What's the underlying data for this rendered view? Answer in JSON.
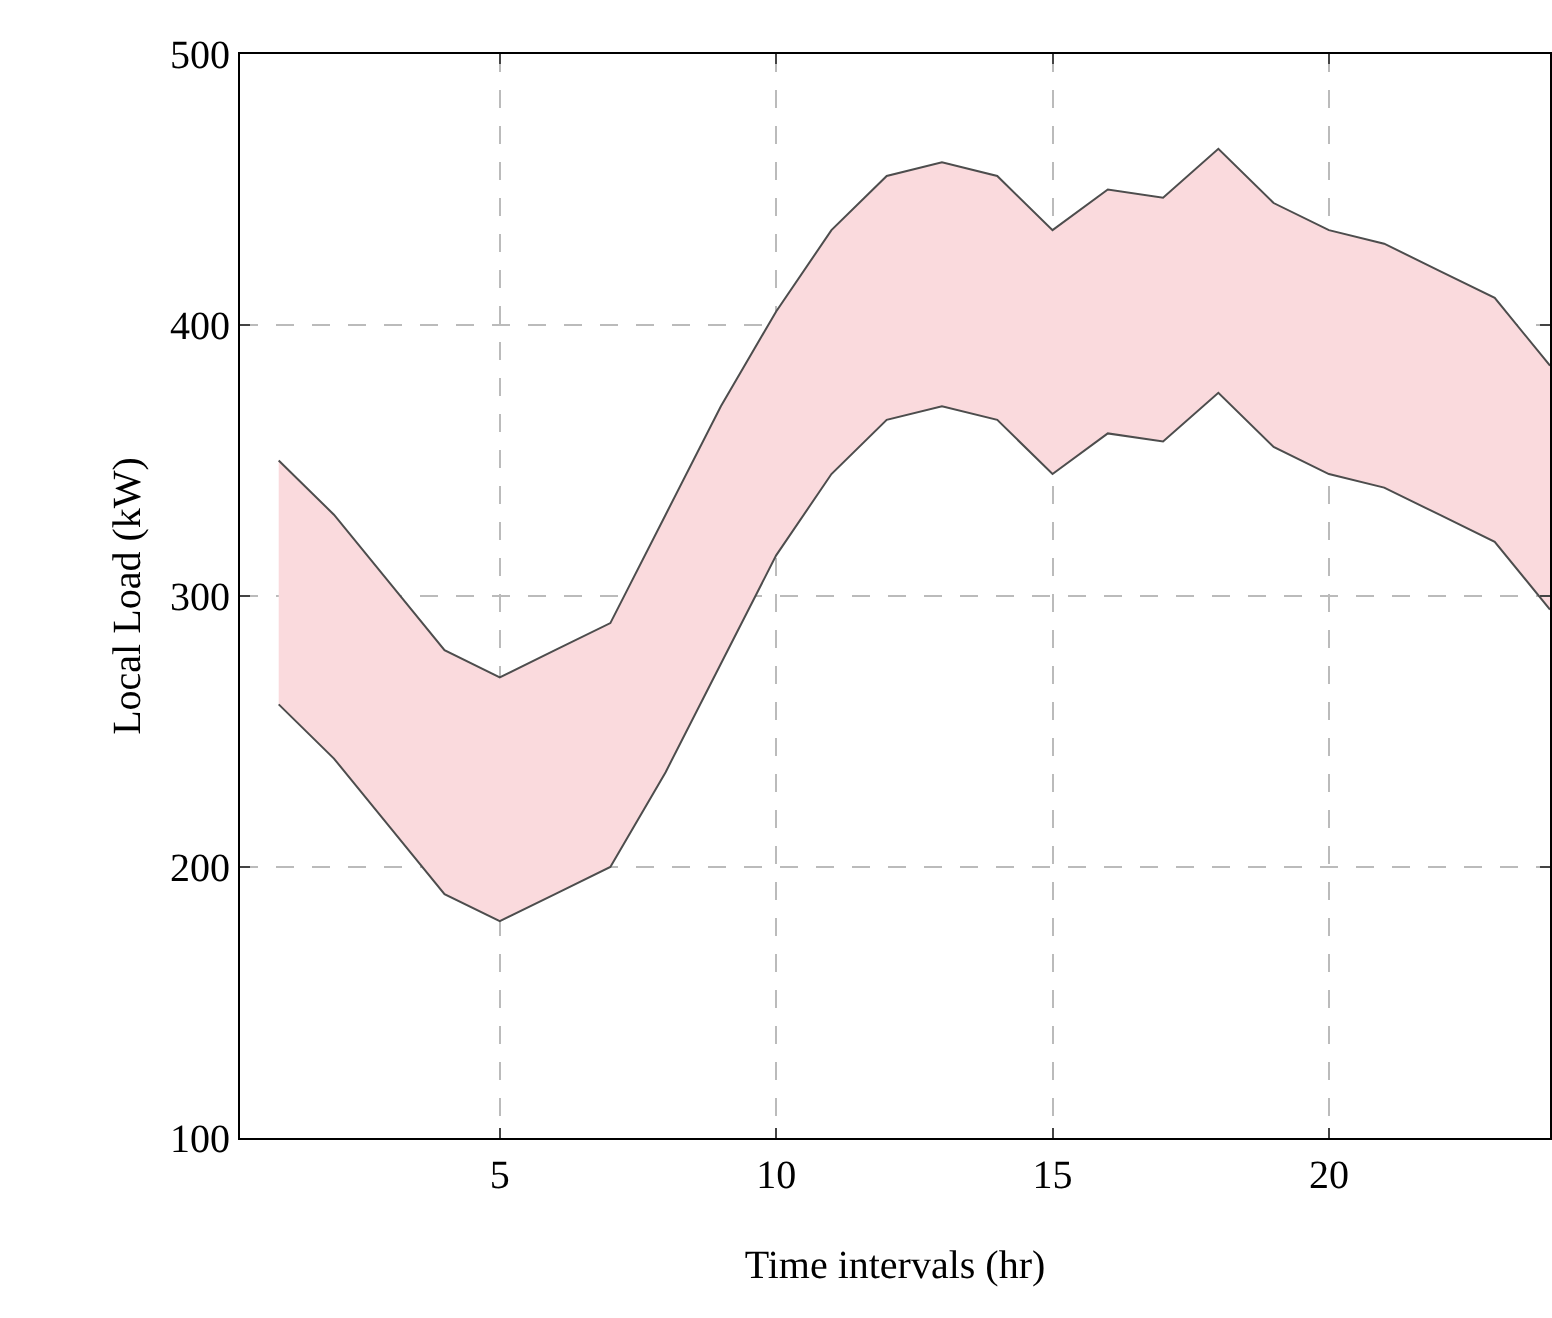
{
  "chart_data": {
    "type": "line",
    "xlabel": "Time intervals (hr)",
    "ylabel": "Local Load (kW)",
    "x": [
      1,
      2,
      3,
      4,
      5,
      6,
      7,
      8,
      9,
      10,
      11,
      12,
      13,
      14,
      15,
      16,
      17,
      18,
      19,
      20,
      21,
      22,
      23,
      24
    ],
    "series": [
      {
        "type": "line",
        "color": "#4d4d4d",
        "values": [
          260,
          240,
          215,
          190,
          180,
          190,
          200,
          235,
          275,
          315,
          345,
          365,
          370,
          365,
          345,
          360,
          357,
          375,
          355,
          345,
          340,
          330,
          320,
          295
        ]
      },
      {
        "type": "area",
        "color": "#fadadd",
        "values": [
          350,
          330,
          305,
          280,
          270,
          280,
          290,
          330,
          370,
          405,
          435,
          455,
          460,
          455,
          435,
          450,
          447,
          465,
          445,
          435,
          430,
          420,
          410,
          385
        ]
      }
    ],
    "xlim": [
      0.3,
      24
    ],
    "ylim": [
      100,
      500
    ],
    "xticks": [
      5,
      10,
      15,
      20
    ],
    "yticks": [
      100,
      200,
      300,
      400,
      500
    ],
    "grid": true
  }
}
